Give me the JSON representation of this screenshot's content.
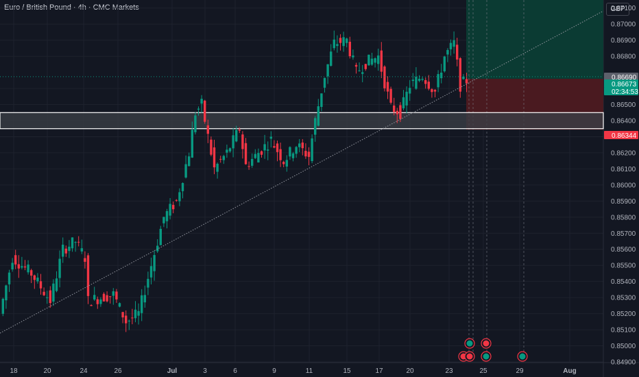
{
  "header": {
    "title": "Euro / British Pound · 4h · CMC Markets",
    "currency": "GBP"
  },
  "colors": {
    "background": "#131722",
    "up": "#089981",
    "down": "#f23645",
    "zone_fill": "#3a3d45",
    "grid": "#1e222d",
    "profit": "#0b3b33",
    "loss": "#4a1a20"
  },
  "chart_data": {
    "type": "candlestick",
    "title": "",
    "ylim": [
      0.849,
      0.8715
    ],
    "yticks": [
      "0.87100",
      "0.87000",
      "0.86900",
      "0.86800",
      "0.86600",
      "0.86500",
      "0.86400",
      "0.86300",
      "0.86200",
      "0.86100",
      "0.86000",
      "0.85900",
      "0.85800",
      "0.85700",
      "0.85600",
      "0.85500",
      "0.85400",
      "0.85300",
      "0.85200",
      "0.85100",
      "0.85000",
      "0.84900"
    ],
    "xticks": [
      "18",
      "20",
      "24",
      "26",
      "Jul",
      "3",
      "6",
      "9",
      "11",
      "15",
      "17",
      "20",
      "23",
      "25",
      "29",
      "Aug"
    ],
    "price_labels": [
      {
        "text": "0.86690",
        "value": 0.8669,
        "kind": "marker"
      },
      {
        "text": "0.86673",
        "value": 0.86673,
        "kind": "last"
      },
      {
        "text": "02:34:53",
        "value": 0.86645,
        "kind": "countdown"
      },
      {
        "text": "0.86344",
        "value": 0.86344,
        "kind": "stop"
      }
    ],
    "zone": {
      "top": 0.8645,
      "bottom": 0.8635
    },
    "trendline": {
      "from": [
        -8,
        0.8508
      ],
      "to": [
        172,
        0.8715
      ]
    },
    "position": {
      "entry": 0.8666,
      "target": 0.8715,
      "stop": 0.86344,
      "from": 152
    },
    "candles": []
  }
}
